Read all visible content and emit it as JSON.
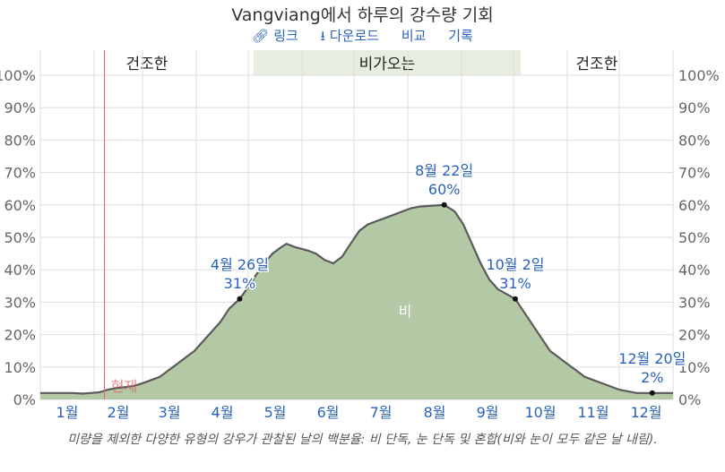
{
  "title": "Vangviang에서 하루의 강수량 기회",
  "toolbar": {
    "link": "링크",
    "download": "다운로드",
    "compare": "비교",
    "history": "기록"
  },
  "caption": "미량을 제외한 다양한 유형의 강우가 관찰된 날의 백분율: 비 단독, 눈 단독 및 혼합(비와 눈이 모두 같은 날 내림).",
  "colors": {
    "area_fill": "#b3c9a6",
    "area_line": "#5a5a5a",
    "season_band": "#e6efdf",
    "now_line": "#e06060",
    "label_blue": "#2a62b9"
  },
  "chart_data": {
    "type": "area",
    "seasons": [
      {
        "label": "건조한",
        "start_day": 1,
        "end_day": 124
      },
      {
        "label": "비가오는",
        "start_day": 124,
        "end_day": 278
      },
      {
        "label": "건조한",
        "start_day": 278,
        "end_day": 366
      }
    ],
    "months": [
      "1월",
      "2월",
      "3월",
      "4월",
      "5월",
      "6월",
      "7월",
      "8월",
      "9월",
      "10월",
      "11월",
      "12월"
    ],
    "month_start_days": [
      1,
      32,
      60,
      91,
      121,
      152,
      182,
      213,
      244,
      274,
      305,
      335,
      366
    ],
    "y_ticks": [
      "0%",
      "10%",
      "20%",
      "30%",
      "40%",
      "50%",
      "60%",
      "70%",
      "80%",
      "90%",
      "100%"
    ],
    "ylim": [
      0,
      100
    ],
    "grid": true,
    "series": [
      {
        "name": "비",
        "points": [
          [
            1,
            2
          ],
          [
            10,
            2
          ],
          [
            20,
            2
          ],
          [
            25,
            1.8
          ],
          [
            30,
            2
          ],
          [
            35,
            2.2
          ],
          [
            40,
            3
          ],
          [
            45,
            3.5
          ],
          [
            50,
            3.8
          ],
          [
            55,
            4.2
          ],
          [
            60,
            5
          ],
          [
            65,
            6
          ],
          [
            70,
            7
          ],
          [
            75,
            9
          ],
          [
            80,
            11
          ],
          [
            85,
            13
          ],
          [
            90,
            15
          ],
          [
            95,
            18
          ],
          [
            100,
            21
          ],
          [
            105,
            24
          ],
          [
            110,
            28
          ],
          [
            116,
            31
          ],
          [
            120,
            34
          ],
          [
            125,
            38
          ],
          [
            130,
            42
          ],
          [
            135,
            45
          ],
          [
            140,
            47
          ],
          [
            143,
            48
          ],
          [
            148,
            47
          ],
          [
            155,
            46
          ],
          [
            160,
            45
          ],
          [
            165,
            43
          ],
          [
            170,
            42
          ],
          [
            175,
            44
          ],
          [
            180,
            48
          ],
          [
            185,
            52
          ],
          [
            190,
            54
          ],
          [
            195,
            55
          ],
          [
            200,
            56
          ],
          [
            205,
            57
          ],
          [
            210,
            58
          ],
          [
            215,
            59
          ],
          [
            220,
            59.5
          ],
          [
            234,
            60
          ],
          [
            240,
            58
          ],
          [
            245,
            54
          ],
          [
            250,
            48
          ],
          [
            255,
            42
          ],
          [
            260,
            37
          ],
          [
            265,
            34
          ],
          [
            275,
            31
          ],
          [
            280,
            27
          ],
          [
            285,
            23
          ],
          [
            290,
            19
          ],
          [
            295,
            15
          ],
          [
            300,
            13
          ],
          [
            305,
            11
          ],
          [
            310,
            9
          ],
          [
            315,
            7
          ],
          [
            320,
            6
          ],
          [
            325,
            5
          ],
          [
            330,
            4
          ],
          [
            335,
            3
          ],
          [
            340,
            2.5
          ],
          [
            345,
            2
          ],
          [
            354,
            2
          ],
          [
            360,
            2
          ],
          [
            366,
            2
          ]
        ]
      }
    ],
    "series_label": "비",
    "annotations": [
      {
        "day": 116,
        "value": 31,
        "date": "4월 26일",
        "pct": "31%"
      },
      {
        "day": 234,
        "value": 60,
        "date": "8월 22일",
        "pct": "60%"
      },
      {
        "day": 275,
        "value": 31,
        "date": "10월 2일",
        "pct": "31%"
      },
      {
        "day": 354,
        "value": 2,
        "date": "12월 20일",
        "pct": "2%"
      }
    ],
    "now": {
      "day": 38,
      "label": "현재"
    }
  }
}
